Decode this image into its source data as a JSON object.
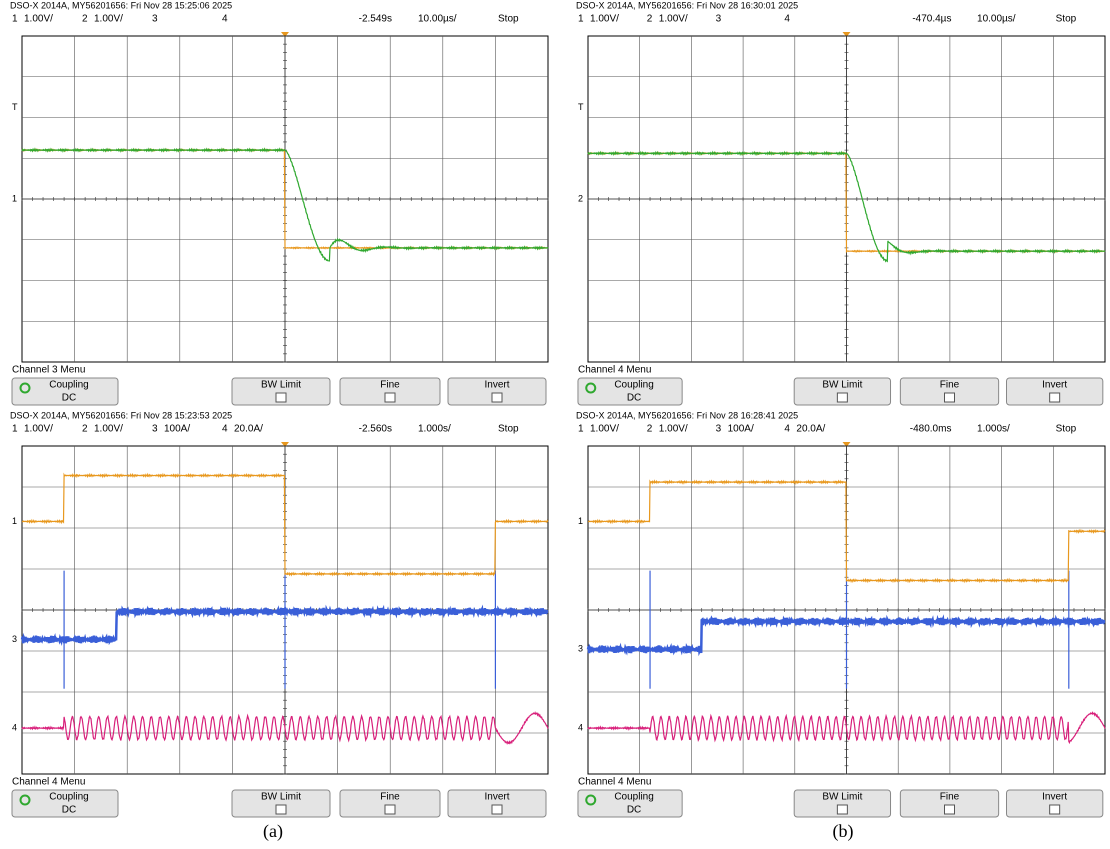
{
  "panels": [
    {
      "header": "DSO-X 2014A, MY56201656: Fri Nov 28 15:25:06 2025",
      "channels": [
        {
          "num": "1",
          "scale": "1.00V/"
        },
        {
          "num": "2",
          "scale": "1.00V/"
        },
        {
          "num": "3"
        },
        {
          "num": "4"
        }
      ],
      "offset": "-2.549s",
      "timebase": "10.00µs/",
      "status": "Stop",
      "menu": "Channel 3 Menu",
      "markers": [
        "T",
        "1"
      ],
      "buttons": {
        "coupling": "Coupling",
        "coupling_value": "DC",
        "bw": "BW Limit",
        "fine": "Fine",
        "invert": "Invert"
      }
    },
    {
      "header": "DSO-X 2014A, MY56201656: Fri Nov 28 16:30:01 2025",
      "channels": [
        {
          "num": "1",
          "scale": "1.00V/"
        },
        {
          "num": "2",
          "scale": "1.00V/"
        },
        {
          "num": "3"
        },
        {
          "num": "4"
        }
      ],
      "offset": "-470.4µs",
      "timebase": "10.00µs/",
      "status": "Stop",
      "menu": "Channel 4 Menu",
      "markers": [
        "T",
        "2"
      ],
      "buttons": {
        "coupling": "Coupling",
        "coupling_value": "DC",
        "bw": "BW Limit",
        "fine": "Fine",
        "invert": "Invert"
      }
    },
    {
      "header": "DSO-X 2014A, MY56201656: Fri Nov 28 15:23:53 2025",
      "channels": [
        {
          "num": "1",
          "scale": "1.00V/"
        },
        {
          "num": "2",
          "scale": "1.00V/"
        },
        {
          "num": "3",
          "scale": "100A/"
        },
        {
          "num": "4",
          "scale": "20.0A/"
        }
      ],
      "offset": "-2.560s",
      "timebase": "1.000s/",
      "status": "Stop",
      "menu": "Channel 4 Menu",
      "markers": [
        "1",
        "3",
        "4"
      ],
      "buttons": {
        "coupling": "Coupling",
        "coupling_value": "DC",
        "bw": "BW Limit",
        "fine": "Fine",
        "invert": "Invert"
      }
    },
    {
      "header": "DSO-X 2014A, MY56201656: Fri Nov 28 16:28:41 2025",
      "channels": [
        {
          "num": "1",
          "scale": "1.00V/"
        },
        {
          "num": "2",
          "scale": "1.00V/"
        },
        {
          "num": "3",
          "scale": "100A/"
        },
        {
          "num": "4",
          "scale": "20.0A/"
        }
      ],
      "offset": "-480.0ms",
      "timebase": "1.000s/",
      "status": "Stop",
      "menu": "Channel 4 Menu",
      "markers": [
        "1",
        "3",
        "4"
      ],
      "buttons": {
        "coupling": "Coupling",
        "coupling_value": "DC",
        "bw": "BW Limit",
        "fine": "Fine",
        "invert": "Invert"
      }
    }
  ],
  "captions": [
    "(a)",
    "(b)"
  ]
}
